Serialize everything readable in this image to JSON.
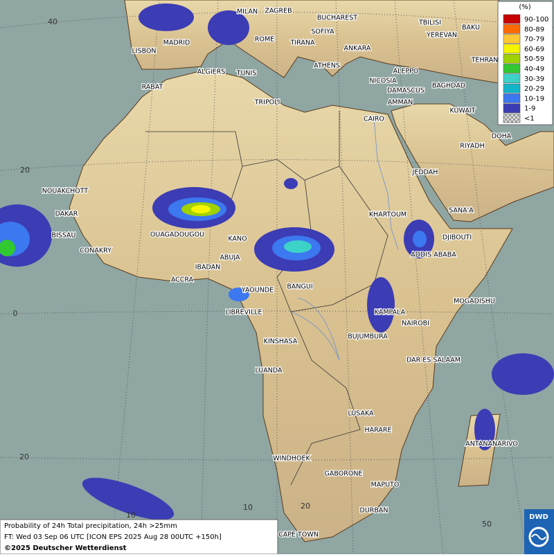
{
  "map": {
    "cities": [
      "MILAN",
      "ZAGREB",
      "BUCHAREST",
      "TBILISI",
      "BAKU",
      "MADRID",
      "SOFIYA",
      "YEREVAN",
      "ROME",
      "TIRANA",
      "ANKARA",
      "TEHRAN",
      "LISBON",
      "ALGIERS",
      "TUNIS",
      "ATHENS",
      "ALEPPO",
      "RABAT",
      "NICOSIA",
      "BAGHDAD",
      "DAMASCUS",
      "TRIPOLI",
      "AMMAN",
      "KUWAIT",
      "CAIRO",
      "DOHA",
      "RIYADH",
      "JEDDAH",
      "NOUAKCHOTT",
      "DAKAR",
      "SANA'A",
      "KHARTOUM",
      "BISSAU",
      "OUAGADOUGOU",
      "DJIBOUTI",
      "KANO",
      "CONAKRY",
      "ADDIS ABABA",
      "ABUJA",
      "IBADAN",
      "ACCRA",
      "BANGUI",
      "YAOUNDE",
      "MOGADISHU",
      "LIBREVILLE",
      "KAMPALA",
      "NAIROBI",
      "BUJUMBURA",
      "KINSHASA",
      "DAR ES SALAAM",
      "LUANDA",
      "LUSAKA",
      "ANTANANARIVO",
      "HARARE",
      "WINDHOEK",
      "GABORONE",
      "MAPUTO",
      "DURBAN",
      "CAPE TOWN"
    ],
    "grid_labels": [
      "40",
      "20",
      "0",
      "20",
      "10",
      "10",
      "20",
      "50"
    ]
  },
  "legend": {
    "unit": "(%)",
    "classes": [
      {
        "label": "90-100",
        "color": "#c80000"
      },
      {
        "label": "80-89",
        "color": "#ff6a00"
      },
      {
        "label": "70-79",
        "color": "#ffc832"
      },
      {
        "label": "60-69",
        "color": "#f5f500"
      },
      {
        "label": "50-59",
        "color": "#a0d200"
      },
      {
        "label": "40-49",
        "color": "#32c832"
      },
      {
        "label": "30-39",
        "color": "#3cd2c8"
      },
      {
        "label": "20-29",
        "color": "#14b4c8"
      },
      {
        "label": "10-19",
        "color": "#3c78f0"
      },
      {
        "label": "1-9",
        "color": "#3c3cb4"
      },
      {
        "label": "<1",
        "color": "checker"
      }
    ]
  },
  "footer": {
    "lines": [
      "Probability of 24h Total precipitation, 24h >25mm",
      "FT: Wed 03 Sep 06 UTC [ICON EPS 2025 Aug 28 00UTC +150h]",
      "©2025 Deutscher Wetterdienst"
    ]
  },
  "logo": {
    "text": "DWD"
  }
}
